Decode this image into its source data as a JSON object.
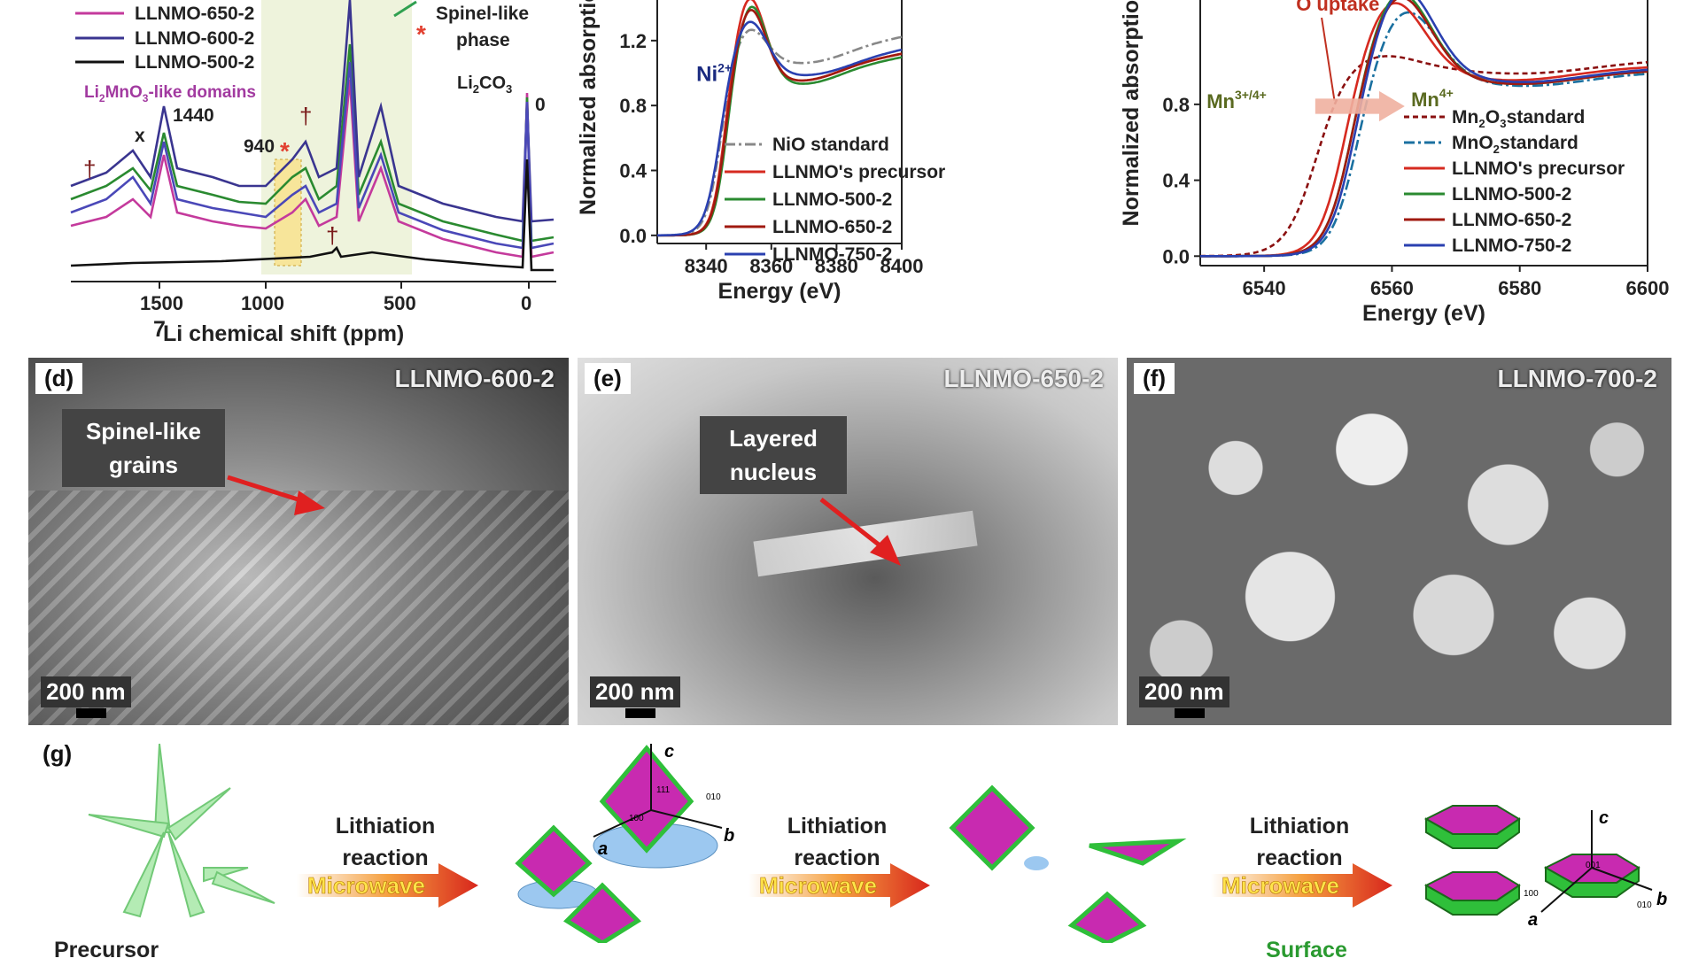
{
  "panel_a": {
    "legend": [
      "LLNMO-650-2",
      "LLNMO-600-2",
      "LLNMO-500-2"
    ],
    "legend_colors": [
      "#c43a9c",
      "#3a3590",
      "#111111"
    ],
    "annotations": {
      "domains_prefix": "Li",
      "domains_sub1": "2",
      "domains_mid": "MnO",
      "domains_sub2": "3",
      "domains_suffix": "-like domains",
      "peak_1440": "1440",
      "peak_940": "940",
      "spinel": "Spinel-like phase",
      "spinel_line1": "Spinel-like",
      "spinel_line2": "phase",
      "li2co3_main": "Li",
      "li2co3_sub": "2",
      "li2co3_rest": "CO",
      "li2co3_sub2": "3",
      "zero": "0",
      "x_mark": "x"
    },
    "xticks": [
      "1500",
      "1000",
      "500",
      "0"
    ],
    "xlabel_sup": "7",
    "xlabel": "Li chemical shift (ppm)"
  },
  "chart_data": [
    {
      "type": "line",
      "title": "",
      "xlabel": "Energy (eV)",
      "ylabel": "Normalized absorption",
      "xlim": [
        8325,
        8400
      ],
      "ylim": [
        -0.05,
        1.45
      ],
      "xticks": [
        "8340",
        "8360",
        "8380",
        "8400"
      ],
      "yticks": [
        "0.0",
        "0.4",
        "0.8",
        "1.2"
      ],
      "annotation": "Ni",
      "annotation_sup": "2+",
      "legend": "bottom-right",
      "series": [
        {
          "name": "NiO standard",
          "color": "#888888",
          "style": "dash-dot"
        },
        {
          "name": "LLNMO's precursor",
          "color": "#d62a20"
        },
        {
          "name": "LLNMO-500-2",
          "color": "#2a8a30"
        },
        {
          "name": "LLNMO-650-2",
          "color": "#a01a10"
        },
        {
          "name": "LLNMO-750-2",
          "color": "#2a40b0"
        }
      ]
    },
    {
      "type": "line",
      "title": "",
      "xlabel": "Energy (eV)",
      "ylabel": "Normalized absorption",
      "xlim": [
        6530,
        6600
      ],
      "ylim": [
        -0.05,
        1.35
      ],
      "xticks": [
        "6540",
        "6560",
        "6580",
        "6600"
      ],
      "yticks": [
        "0.0",
        "0.4",
        "0.8"
      ],
      "annotations": {
        "uptake": "O uptake",
        "mn34": "Mn",
        "mn34_sup": "3+/4+",
        "mn4": "Mn",
        "mn4_sup": "4+"
      },
      "legend": "bottom-right",
      "series": [
        {
          "name": "Mn2O3 standard",
          "color": "#8a1010",
          "style": "dash"
        },
        {
          "name": "MnO2 standard",
          "color": "#1a70a0",
          "style": "dash-dot"
        },
        {
          "name": "LLNMO's precursor",
          "color": "#d62a20"
        },
        {
          "name": "LLNMO-500-2",
          "color": "#2a8a30"
        },
        {
          "name": "LLNMO-650-2",
          "color": "#a01a10"
        },
        {
          "name": "LLNMO-750-2",
          "color": "#2a40b0"
        }
      ]
    }
  ],
  "legend_text": {
    "mn2o3_a": "Mn",
    "mn2o3_b": "2",
    "mn2o3_c": "O",
    "mn2o3_d": "3",
    "mn2o3_e": " standard",
    "mno2_a": "MnO",
    "mno2_b": "2",
    "mno2_c": " standard"
  },
  "sem": [
    {
      "tag": "(d)",
      "label": "LLNMO-600-2",
      "scale": "200 nm",
      "callout": "Spinel-like grains",
      "callout_l1": "Spinel-like",
      "callout_l2": "grains"
    },
    {
      "tag": "(e)",
      "label": "LLNMO-650-2",
      "scale": "200 nm",
      "callout": "Layered nucleus",
      "callout_l1": "Layered",
      "callout_l2": "nucleus"
    },
    {
      "tag": "(f)",
      "label": "LLNMO-700-2",
      "scale": "200 nm"
    }
  ],
  "panel_g": {
    "tag": "(g)",
    "step_line1": "Lithiation",
    "step_line2": "reaction",
    "arrow_text": "Microwave",
    "precursor": "Precursor",
    "surface": "Surface",
    "axes": {
      "c": "c",
      "a": "a",
      "b": "b"
    },
    "facets": {
      "f111": "111",
      "f100": "100",
      "f010": "010",
      "f001": "001"
    }
  },
  "colors": {
    "magenta": "#c82ab0",
    "green": "#2fbf3a",
    "light_green": "#a8e8a8",
    "blue_disk": "#9cc8f0",
    "red_arrow": "#d8261c",
    "yellow": "#ffe44a"
  }
}
